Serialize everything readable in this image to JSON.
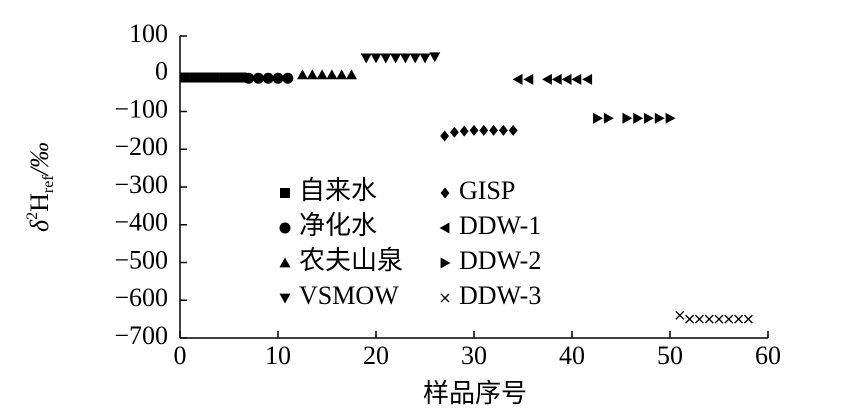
{
  "chart_data": {
    "type": "scatter",
    "xlabel": "样品序号",
    "ylabel": {
      "delta": "δ",
      "sup": "2",
      "base": "H",
      "sub": "ref",
      "unit": "/‰"
    },
    "xlim": [
      0,
      60
    ],
    "xticks": [
      0,
      10,
      20,
      30,
      40,
      50,
      60
    ],
    "ylim": [
      -700,
      100
    ],
    "yticks": [
      100,
      0,
      {
        "value": -100,
        "label": "−100"
      },
      {
        "value": -200,
        "label": "−200"
      },
      {
        "value": -300,
        "label": "−300"
      },
      {
        "value": -400,
        "label": "−400"
      },
      {
        "value": -500,
        "label": "−500"
      },
      {
        "value": -600,
        "label": "−600"
      },
      {
        "value": -700,
        "label": "−700"
      }
    ],
    "grid": false,
    "series": [
      {
        "name": "自来水",
        "marker": "square",
        "color": "#000000",
        "x": [
          0.5,
          1.5,
          2.5,
          3.5,
          4.5,
          5.5,
          6.3
        ],
        "values": [
          -10,
          -10,
          -10,
          -10,
          -10,
          -10,
          -10
        ]
      },
      {
        "name": "净化水",
        "marker": "circle",
        "color": "#000000",
        "x": [
          7,
          8,
          9,
          10,
          11
        ],
        "values": [
          -12,
          -12,
          -12,
          -12,
          -12
        ]
      },
      {
        "name": "农夫山泉",
        "marker": "triangle-up",
        "color": "#000000",
        "x": [
          12.5,
          13.5,
          14.5,
          15.5,
          16.5,
          17.5
        ],
        "values": [
          -3,
          -3,
          -3,
          -3,
          -3,
          -3
        ]
      },
      {
        "name": "VSMOW",
        "marker": "triangle-down",
        "color": "#000000",
        "x": [
          19,
          20,
          21,
          22,
          23,
          24,
          25,
          26
        ],
        "values": [
          42,
          42,
          42,
          42,
          42,
          42,
          42,
          45
        ]
      },
      {
        "name": "GISP",
        "marker": "diamond",
        "color": "#000000",
        "x": [
          27,
          28,
          29,
          30,
          31,
          32,
          33,
          34
        ],
        "values": [
          -165,
          -155,
          -152,
          -150,
          -150,
          -150,
          -150,
          -150
        ]
      },
      {
        "name": "DDW-1",
        "marker": "triangle-left",
        "color": "#000000",
        "x": [
          34.5,
          35.6,
          37.5,
          38.5,
          39.5,
          40.5,
          41.6
        ],
        "values": [
          -15,
          -15,
          -15,
          -15,
          -15,
          -15,
          -15
        ]
      },
      {
        "name": "DDW-2",
        "marker": "triangle-right",
        "color": "#000000",
        "x": [
          42.6,
          43.7,
          45.6,
          46.7,
          47.8,
          48.9,
          50
        ],
        "values": [
          -118,
          -118,
          -118,
          -118,
          -118,
          -118,
          -118
        ]
      },
      {
        "name": "DDW-3",
        "marker": "cross",
        "color": "#000000",
        "x": [
          51,
          52,
          53,
          54,
          55,
          56,
          57,
          58
        ],
        "values": [
          -640,
          -650,
          -650,
          -650,
          -650,
          -650,
          -650,
          -650
        ]
      }
    ]
  }
}
